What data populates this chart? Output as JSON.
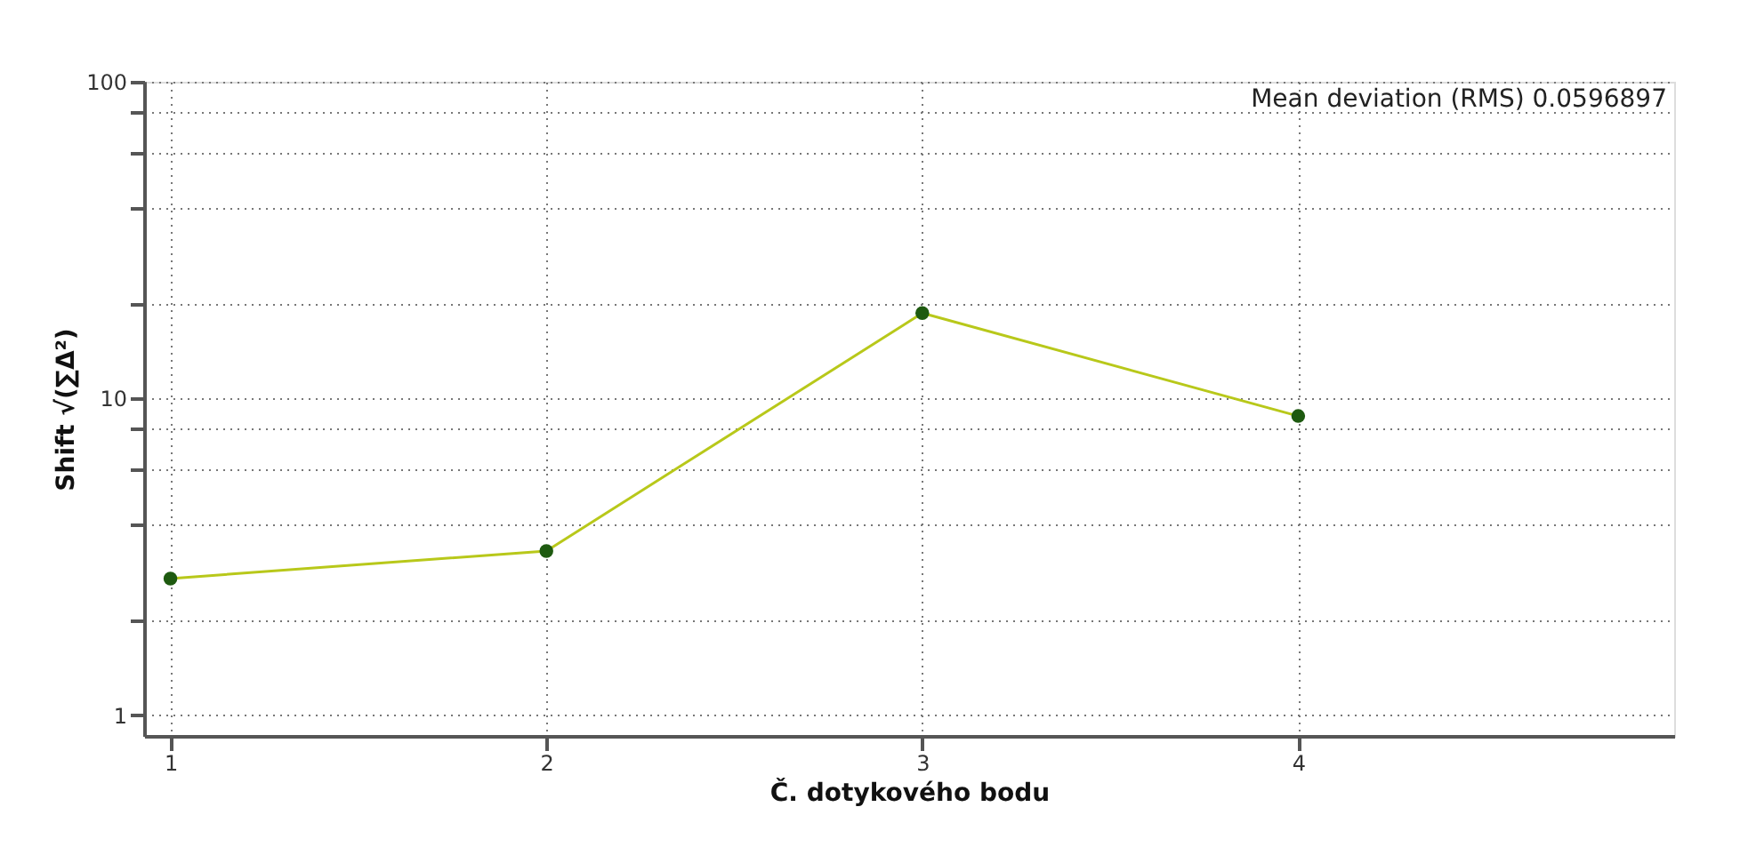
{
  "chart_data": {
    "type": "line",
    "xlabel": "Č. dotykového bodu",
    "ylabel": "Shift √(∑Δ²)",
    "x": [
      1,
      2,
      3,
      4
    ],
    "series": [
      {
        "color": "#b8c81a",
        "colors": [
          "#1e5a10",
          "#1e5a10",
          "#1e5a10",
          "#1e5a10"
        ],
        "values": [
          2.7,
          3.3,
          18.6,
          8.8
        ]
      }
    ],
    "xlim": [
      0.93,
      5
    ],
    "xticks": [
      1,
      2,
      3,
      4
    ],
    "ylim": [
      0.86,
      100
    ],
    "yticks": [
      1,
      {
        "value": 2,
        "label": null
      },
      {
        "value": 4,
        "label": null
      },
      {
        "value": 6,
        "label": null
      },
      {
        "value": 8,
        "label": null
      },
      10,
      {
        "value": 20,
        "label": null
      },
      {
        "value": 40,
        "label": null
      },
      {
        "value": 60,
        "label": null
      },
      {
        "value": 80,
        "label": null
      },
      100
    ],
    "log": true,
    "grid": true,
    "marker": "circle",
    "line_style": "solid",
    "annotations": [
      "Mean deviation (RMS) 0.0596897"
    ]
  }
}
